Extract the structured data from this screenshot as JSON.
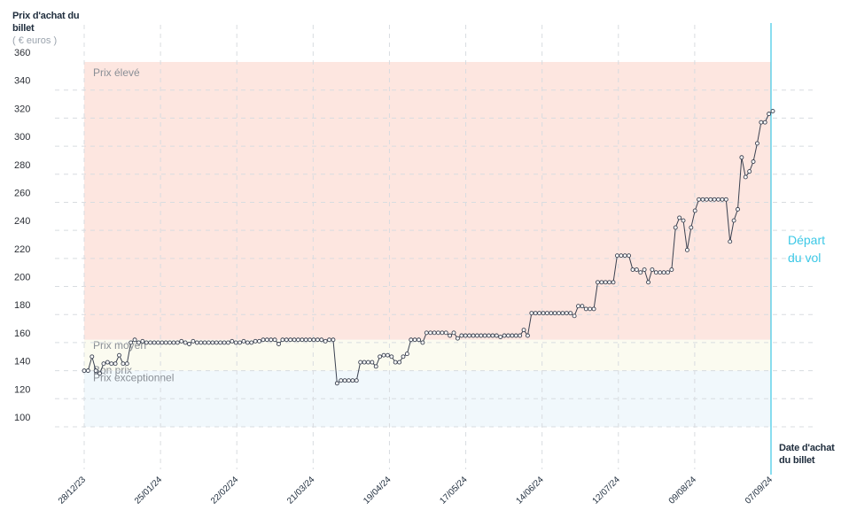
{
  "chart_data": {
    "type": "line",
    "ylabel": "Prix d'achat du billet",
    "yunit": "( € euros )",
    "xlabel": "Date d'achat du billet",
    "ylim": [
      90,
      360
    ],
    "yticks": [
      100,
      120,
      140,
      160,
      180,
      200,
      220,
      240,
      260,
      280,
      300,
      320,
      340,
      360
    ],
    "x_start": "28/12/23",
    "x_end": "07/09/24",
    "xticks": [
      "28/12/23",
      "25/01/24",
      "22/02/24",
      "21/03/24",
      "19/04/24",
      "17/05/24",
      "14/06/24",
      "12/07/24",
      "09/08/24",
      "07/09/24"
    ],
    "grid": true,
    "bands": [
      {
        "label": "Prix élevé",
        "from": 162,
        "to": 360,
        "color": "#fde6e0"
      },
      {
        "label": "Prix moyen",
        "from": 148,
        "to": 162,
        "color": "#fbfbf0"
      },
      {
        "label": "Bon prix",
        "from": 140,
        "to": 148,
        "color": "#fbfbf0"
      },
      {
        "label": "Prix exceptionnel",
        "from": 100,
        "to": 140,
        "color": "#f1f8fc"
      }
    ],
    "annotation": {
      "label_line1": "Départ",
      "label_line2": "du vol",
      "color": "#3cc8e6"
    },
    "series": [
      {
        "color": "#3a4150",
        "values": [
          140,
          140,
          150,
          140,
          138,
          145,
          146,
          145,
          145,
          151,
          145,
          145,
          160,
          162,
          160,
          161,
          160,
          160,
          160,
          160,
          160,
          160,
          160,
          160,
          160,
          161,
          160,
          159,
          161,
          160,
          160,
          160,
          160,
          160,
          160,
          160,
          160,
          160,
          161,
          160,
          160,
          161,
          160,
          160,
          161,
          161,
          162,
          162,
          162,
          162,
          159,
          162,
          162,
          162,
          162,
          162,
          162,
          162,
          162,
          162,
          162,
          162,
          161,
          162,
          162,
          131,
          133,
          133,
          133,
          133,
          133,
          146,
          146,
          146,
          146,
          143,
          150,
          151,
          151,
          150,
          146,
          146,
          150,
          152,
          162,
          162,
          162,
          160,
          167,
          167,
          167,
          167,
          167,
          167,
          165,
          167,
          163,
          165,
          165,
          165,
          165,
          165,
          165,
          165,
          165,
          165,
          165,
          164,
          165,
          165,
          165,
          165,
          165,
          169,
          165,
          181,
          181,
          181,
          181,
          181,
          181,
          181,
          181,
          181,
          181,
          181,
          179,
          186,
          186,
          184,
          184,
          184,
          203,
          203,
          203,
          203,
          203,
          222,
          222,
          222,
          222,
          212,
          212,
          210,
          212,
          203,
          212,
          210,
          210,
          210,
          210,
          212,
          242,
          249,
          247,
          226,
          242,
          254,
          262,
          262,
          262,
          262,
          262,
          262,
          262,
          262,
          232,
          247,
          255,
          292,
          278,
          282,
          289,
          302,
          317,
          317,
          323,
          325
        ]
      }
    ]
  }
}
